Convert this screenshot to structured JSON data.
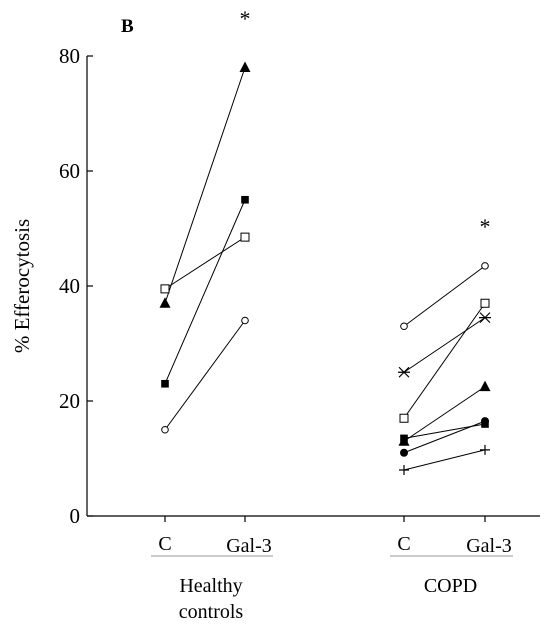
{
  "chart_data": {
    "type": "line",
    "panel_label": "B",
    "ylabel": "% Efferocytosis",
    "ylim": [
      0,
      80
    ],
    "yticks": [
      0,
      20,
      40,
      60,
      80
    ],
    "xticks": [
      "C",
      "Gal-3",
      "C",
      "Gal-3"
    ],
    "significance_marker": "*",
    "groups": [
      {
        "label": "Healthy\ncontrols",
        "label_lines": [
          "Healthy",
          "controls"
        ],
        "significant": true,
        "pairs": [
          {
            "marker": "filled-triangle",
            "values": [
              37,
              78
            ]
          },
          {
            "marker": "filled-square",
            "values": [
              23,
              55
            ]
          },
          {
            "marker": "open-square",
            "values": [
              39.5,
              48.5
            ]
          },
          {
            "marker": "open-circle",
            "values": [
              15,
              34
            ]
          }
        ]
      },
      {
        "label": "COPD",
        "label_lines": [
          "COPD"
        ],
        "significant": true,
        "pairs": [
          {
            "marker": "open-circle",
            "values": [
              33,
              43.5
            ]
          },
          {
            "marker": "asterisk",
            "values": [
              25,
              34.5
            ]
          },
          {
            "marker": "open-square",
            "values": [
              17,
              37
            ]
          },
          {
            "marker": "filled-square",
            "values": [
              13.5,
              16
            ]
          },
          {
            "marker": "filled-triangle",
            "values": [
              13,
              22.5
            ]
          },
          {
            "marker": "filled-circle",
            "values": [
              11,
              16.5
            ]
          },
          {
            "marker": "plus",
            "values": [
              8,
              11.5
            ]
          }
        ]
      }
    ]
  }
}
